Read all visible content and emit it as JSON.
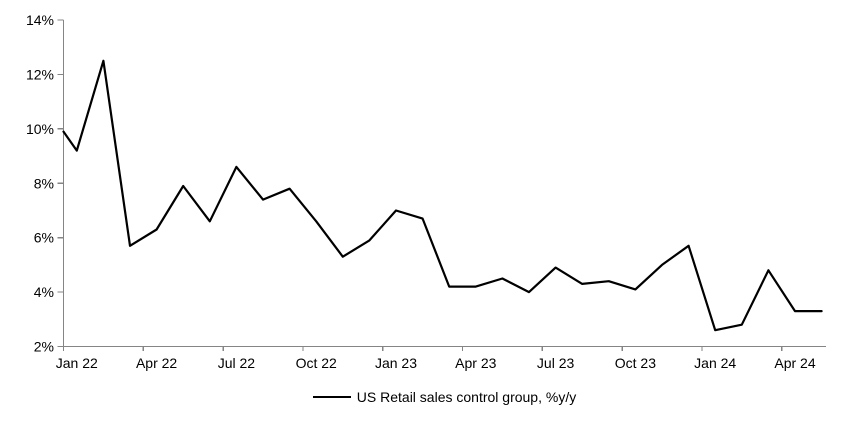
{
  "chart_data": {
    "type": "line",
    "title": "",
    "x": [
      "Jan 22",
      "Feb 22",
      "Mar 22",
      "Apr 22",
      "May 22",
      "Jun 22",
      "Jul 22",
      "Aug 22",
      "Sep 22",
      "Oct 22",
      "Nov 22",
      "Dec 22",
      "Jan 23",
      "Feb 23",
      "Mar 23",
      "Apr 23",
      "May 23",
      "Jun 23",
      "Jul 23",
      "Aug 23",
      "Sep 23",
      "Oct 23",
      "Nov 23",
      "Dec 23",
      "Jan 24",
      "Feb 24",
      "Mar 24",
      "Apr 24",
      "May 24"
    ],
    "series": [
      {
        "name": "US Retail sales control group, %y/y",
        "color": "#000000",
        "values": [
          9.2,
          12.5,
          5.7,
          6.3,
          7.9,
          6.6,
          8.6,
          7.4,
          7.8,
          6.6,
          5.3,
          5.9,
          7.0,
          6.7,
          4.2,
          4.2,
          4.5,
          4.0,
          4.9,
          4.3,
          4.4,
          4.1,
          5.0,
          5.7,
          2.6,
          2.8,
          4.8,
          3.3,
          3.3
        ]
      }
    ],
    "line_start_at_axis_value": 9.9,
    "ylim": [
      2,
      14
    ],
    "y_tick_values": [
      14,
      12,
      10,
      8,
      6,
      4,
      2
    ],
    "y_tick_labels": [
      "14%",
      "12%",
      "10%",
      "8%",
      "6%",
      "4%",
      "2%"
    ],
    "x_tick_labels": [
      "Jan 22",
      "Apr 22",
      "Jul 22",
      "Oct 22",
      "Jan 23",
      "Apr 23",
      "Jul 23",
      "Oct 23",
      "Jan 24",
      "Apr 24"
    ],
    "x_tick_every": 3,
    "grid": false,
    "legend_position": "bottom-center",
    "axis_color": "#858585",
    "text_color": "#000000",
    "background": "#ffffff"
  },
  "legend": {
    "label": "US Retail sales control group, %y/y"
  }
}
